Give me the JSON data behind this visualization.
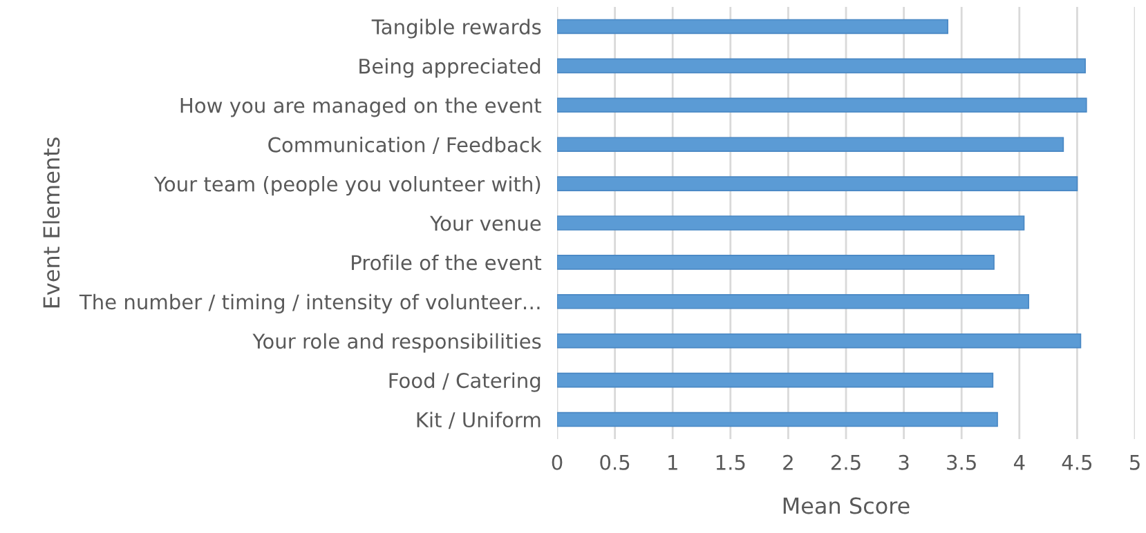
{
  "chart_data": {
    "type": "bar",
    "orientation": "horizontal",
    "xlabel": "Mean Score",
    "ylabel": "Event Elements",
    "categories": [
      "Tangible rewards",
      "Being appreciated",
      "How you are managed on the event",
      "Communication / Feedback",
      "Your team (people you volunteer with)",
      "Your venue",
      "Profile of the event",
      "The number / timing / intensity of volunteer…",
      "Your role and responsibilities",
      "Food / Catering",
      "Kit / Uniform"
    ],
    "values": [
      3.38,
      4.57,
      4.58,
      4.38,
      4.5,
      4.04,
      3.78,
      4.08,
      4.53,
      3.77,
      3.81
    ],
    "color": "#5b9bd5",
    "xlim": [
      0,
      5
    ],
    "xticks": [
      0,
      0.5,
      1,
      1.5,
      2,
      2.5,
      3,
      3.5,
      4,
      4.5,
      5
    ],
    "grid": "x",
    "legend": false
  }
}
